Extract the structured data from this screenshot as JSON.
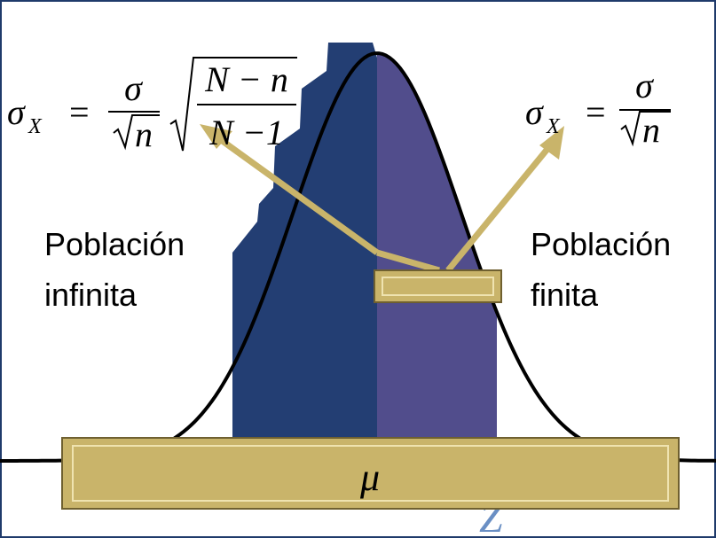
{
  "formulas": {
    "left": {
      "lhs": "σ",
      "sub": "X",
      "eq": "=",
      "num": "σ",
      "den": "n",
      "fnum": "N − n",
      "fden": "N −1"
    },
    "right": {
      "lhs": "σ",
      "sub": "X",
      "eq": "=",
      "num": "σ",
      "den": "n"
    }
  },
  "labels": {
    "left": [
      "Población",
      "infinita"
    ],
    "right": [
      "Población",
      "finita"
    ]
  },
  "mean": "μ",
  "axis": "Z"
}
